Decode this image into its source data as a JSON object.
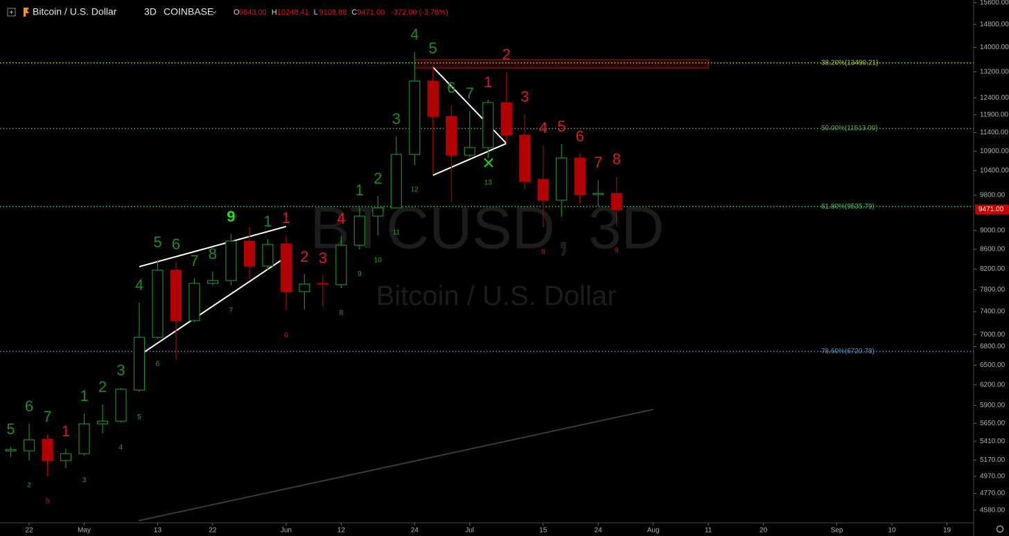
{
  "chart_data": {
    "type": "candlestick",
    "header": {
      "symbol": "Bitcoin / U.S. Dollar",
      "interval": "3D",
      "exchange": "COINBASE",
      "ohlc": [
        {
          "key": "O",
          "value": "9843.00"
        },
        {
          "key": "H",
          "value": "10248.41"
        },
        {
          "key": "L",
          "value": "9108.88"
        },
        {
          "key": "C",
          "value": "9471.00"
        }
      ],
      "change": "-372.00 (-3.78%)"
    },
    "watermark": {
      "symbol": "BTCUSD, 3D",
      "description": "Bitcoin / U.S. Dollar"
    },
    "log_scale": true,
    "xlim": [
      -4.76,
      154.36
    ],
    "ylim": [
      4443,
      15700
    ],
    "xticks": [
      {
        "value": 0,
        "label": "22"
      },
      {
        "value": 9,
        "label": "May"
      },
      {
        "value": 21,
        "label": "13"
      },
      {
        "value": 30,
        "label": "22"
      },
      {
        "value": 42,
        "label": "Jun"
      },
      {
        "value": 51,
        "label": "12"
      },
      {
        "value": 63,
        "label": "24"
      },
      {
        "value": 72,
        "label": "Jul"
      },
      {
        "value": 84,
        "label": "15"
      },
      {
        "value": 93,
        "label": "24"
      },
      {
        "value": 102,
        "label": "Aug"
      },
      {
        "value": 111,
        "label": "11"
      },
      {
        "value": 120,
        "label": "20"
      },
      {
        "value": 132,
        "label": "Sep"
      },
      {
        "value": 141,
        "label": "10"
      },
      {
        "value": 150,
        "label": "19"
      }
    ],
    "yticks": [
      {
        "value": 15600,
        "label": "15600.00"
      },
      {
        "value": 14800,
        "label": "14800.00"
      },
      {
        "value": 14000,
        "label": "14000.00"
      },
      {
        "value": 13200,
        "label": "13200.00"
      },
      {
        "value": 12400,
        "label": "12400.00"
      },
      {
        "value": 11900,
        "label": "11900.00"
      },
      {
        "value": 11400,
        "label": "11400.00"
      },
      {
        "value": 10900,
        "label": "10900.00"
      },
      {
        "value": 10400,
        "label": "10400.00"
      },
      {
        "value": 9800,
        "label": "9800.00"
      },
      {
        "value": 9000,
        "label": "9000.00"
      },
      {
        "value": 8600,
        "label": "8600.00"
      },
      {
        "value": 8200,
        "label": "8200.00"
      },
      {
        "value": 7800,
        "label": "7800.00"
      },
      {
        "value": 7400,
        "label": "7400.00"
      },
      {
        "value": 7000,
        "label": "7000.00"
      },
      {
        "value": 6800,
        "label": "6800.00"
      },
      {
        "value": 6500,
        "label": "6500.00"
      },
      {
        "value": 6200,
        "label": "6200.00"
      },
      {
        "value": 5900,
        "label": "5900.00"
      },
      {
        "value": 5650,
        "label": "5650.00"
      },
      {
        "value": 5410,
        "label": "5410.00"
      },
      {
        "value": 5170,
        "label": "5170.00"
      },
      {
        "value": 4970,
        "label": "4970.00"
      },
      {
        "value": 4770,
        "label": "4770.00"
      },
      {
        "value": 4580,
        "label": "4580.00"
      }
    ],
    "up_color": "#1f8a1f",
    "down_color": "#b40000",
    "last_price": {
      "value": 9471,
      "label": "9471.00",
      "color": "#c40000"
    },
    "fib_levels": [
      {
        "label": "38.20%(13490.21)",
        "value": 13490.21,
        "color": "#a8d63c"
      },
      {
        "label": "50.00%(11513.00)",
        "value": 11513.0,
        "color": "#4cbb4c"
      },
      {
        "label": "61.80%(9535.79)",
        "value": 9535.79,
        "color": "#4cc06a"
      },
      {
        "label": "78.60%(6720.78)",
        "value": 6720.78,
        "color": "#4c9bd8"
      }
    ],
    "zone": {
      "x": [
        63,
        111
      ],
      "y": [
        13326,
        13597
      ],
      "color": "#a01818"
    },
    "trendlines": [
      {
        "x": [
          18,
          42
        ],
        "y": [
          8247,
          9087
        ],
        "color": "#ffffff"
      },
      {
        "x": [
          18,
          42
        ],
        "y": [
          6657,
          8442
        ],
        "color": "#ffffff"
      },
      {
        "x": [
          66,
          78
        ],
        "y": [
          13349,
          11106
        ],
        "color": "#ffffff"
      },
      {
        "x": [
          66,
          78
        ],
        "y": [
          10284,
          11106
        ],
        "color": "#ffffff"
      },
      {
        "x": [
          17.9,
          102
        ],
        "y": [
          4466,
          5843
        ],
        "color": "#3a3a3a"
      }
    ],
    "candles": [
      {
        "x": -3,
        "open": 5286,
        "high": 5340,
        "low": 5206,
        "close": 5303,
        "setup": {
          "text": "5",
          "color": "#1f8a1f"
        }
      },
      {
        "x": 0,
        "open": 5286,
        "high": 5643,
        "low": 5164,
        "close": 5429,
        "setup": {
          "text": "6",
          "color": "#1f8a1f"
        },
        "countdown": {
          "text": "2",
          "color": "#26a626"
        }
      },
      {
        "x": 3,
        "open": 5439,
        "high": 5503,
        "low": 4969,
        "close": 5164,
        "setup": {
          "text": "7",
          "color": "#1f8a1f"
        },
        "countdown": {
          "text": "5",
          "color": "#d01010"
        }
      },
      {
        "x": 6,
        "open": 5164,
        "high": 5313,
        "low": 5070,
        "close": 5250,
        "setup": {
          "text": "1",
          "color": "#e0181c"
        }
      },
      {
        "x": 9,
        "open": 5250,
        "high": 5786,
        "low": 5225,
        "close": 5643,
        "setup": {
          "text": "1",
          "color": "#1f8a1f"
        },
        "countdown": {
          "text": "3",
          "color": "#26a626"
        }
      },
      {
        "x": 12,
        "open": 5643,
        "high": 5913,
        "low": 5512,
        "close": 5680,
        "setup": {
          "text": "2",
          "color": "#1f8a1f"
        }
      },
      {
        "x": 15,
        "open": 5680,
        "high": 6154,
        "low": 5660,
        "close": 6134,
        "setup": {
          "text": "3",
          "color": "#1f8a1f"
        },
        "countdown": {
          "text": "4",
          "color": "#26a626"
        }
      },
      {
        "x": 18,
        "open": 6123,
        "high": 7560,
        "low": 6093,
        "close": 6953,
        "setup": {
          "text": "4",
          "color": "#1f8a1f"
        },
        "countdown": {
          "text": "5",
          "color": "#26a626"
        }
      },
      {
        "x": 21,
        "open": 6953,
        "high": 8385,
        "low": 6919,
        "close": 8178,
        "setup": {
          "text": "5",
          "color": "#1f8a1f"
        },
        "countdown": {
          "text": "6",
          "color": "#26a626"
        }
      },
      {
        "x": 24,
        "open": 8178,
        "high": 8344,
        "low": 6591,
        "close": 7239,
        "setup": {
          "text": "6",
          "color": "#1f8a1f"
        }
      },
      {
        "x": 27,
        "open": 7239,
        "high": 8016,
        "low": 7214,
        "close": 7922,
        "setup": {
          "text": "7",
          "color": "#1f8a1f"
        }
      },
      {
        "x": 30,
        "open": 7922,
        "high": 8151,
        "low": 7882,
        "close": 7975,
        "setup": {
          "text": "8",
          "color": "#1f8a1f"
        }
      },
      {
        "x": 33,
        "open": 7975,
        "high": 8922,
        "low": 7882,
        "close": 8773,
        "setup": {
          "text": "9",
          "color": "#19e619"
        },
        "countdown": {
          "text": "7",
          "color": "#26a626"
        }
      },
      {
        "x": 36,
        "open": 8773,
        "high": 9071,
        "low": 8002,
        "close": 8261
      },
      {
        "x": 39,
        "open": 8261,
        "high": 8817,
        "low": 8178,
        "close": 8701,
        "setup": {
          "text": "1",
          "color": "#1f8a1f"
        }
      },
      {
        "x": 42,
        "open": 8715,
        "high": 8891,
        "low": 7421,
        "close": 7765,
        "setup": {
          "text": "1",
          "color": "#e0181c"
        },
        "countdown": {
          "text": "6",
          "color": "#d01010"
        }
      },
      {
        "x": 45,
        "open": 7765,
        "high": 8096,
        "low": 7434,
        "close": 7909,
        "setup": {
          "text": "2",
          "color": "#e0181c"
        }
      },
      {
        "x": 48,
        "open": 7922,
        "high": 8069,
        "low": 7484,
        "close": 7909,
        "setup": {
          "text": "3",
          "color": "#e0181c"
        }
      },
      {
        "x": 51,
        "open": 7896,
        "high": 8877,
        "low": 7830,
        "close": 8685,
        "setup": {
          "text": "4",
          "color": "#e0181c"
        },
        "countdown": {
          "text": "8",
          "color": "#26a626"
        }
      },
      {
        "x": 54,
        "open": 8685,
        "high": 9506,
        "low": 8599,
        "close": 9318,
        "setup": {
          "text": "1",
          "color": "#1f8a1f"
        },
        "countdown": {
          "text": "9",
          "color": "#26a626"
        }
      },
      {
        "x": 57,
        "open": 9318,
        "high": 9781,
        "low": 8891,
        "close": 9506,
        "setup": {
          "text": "2",
          "color": "#1f8a1f"
        },
        "countdown": {
          "text": "10",
          "color": "#26a626"
        }
      },
      {
        "x": 60,
        "open": 9506,
        "high": 11293,
        "low": 9506,
        "close": 10813,
        "setup": {
          "text": "3",
          "color": "#1f8a1f"
        },
        "countdown": {
          "text": "11",
          "color": "#26a626"
        }
      },
      {
        "x": 63,
        "open": 10813,
        "high": 13849,
        "low": 10546,
        "close": 12910,
        "setup": {
          "text": "4",
          "color": "#1f8a1f"
        },
        "countdown": {
          "text": "12",
          "color": "#26a626"
        }
      },
      {
        "x": 66,
        "open": 12910,
        "high": 13393,
        "low": 10302,
        "close": 11855,
        "setup": {
          "text": "5",
          "color": "#1f8a1f"
        }
      },
      {
        "x": 69,
        "open": 11855,
        "high": 12176,
        "low": 9635,
        "close": 10795,
        "setup": {
          "text": "6",
          "color": "#1f8a1f"
        }
      },
      {
        "x": 72,
        "open": 10795,
        "high": 12013,
        "low": 10741,
        "close": 10995,
        "setup": {
          "text": "7",
          "color": "#1f8a1f"
        }
      },
      {
        "x": 75,
        "open": 10995,
        "high": 12340,
        "low": 10723,
        "close": 12258,
        "setup": {
          "text": "1",
          "color": "#e0181c"
        },
        "countdown": {
          "text": "13",
          "color": "#26a626"
        }
      },
      {
        "x": 78,
        "open": 12258,
        "high": 13194,
        "low": 11050,
        "close": 11331,
        "setup": {
          "text": "2",
          "color": "#e0181c"
        }
      },
      {
        "x": 81,
        "open": 11331,
        "high": 11915,
        "low": 9929,
        "close": 10131,
        "setup": {
          "text": "3",
          "color": "#e0181c"
        }
      },
      {
        "x": 84,
        "open": 10182,
        "high": 11050,
        "low": 9071,
        "close": 9683,
        "setup": {
          "text": "4",
          "color": "#e0181c"
        },
        "countdown": {
          "text": "8",
          "color": "#d01010"
        }
      },
      {
        "x": 87,
        "open": 9683,
        "high": 11087,
        "low": 9302,
        "close": 10723,
        "setup": {
          "text": "5",
          "color": "#e0181c"
        }
      },
      {
        "x": 90,
        "open": 10723,
        "high": 10831,
        "low": 9618,
        "close": 9814,
        "setup": {
          "text": "6",
          "color": "#e0181c"
        }
      },
      {
        "x": 93,
        "open": 9814,
        "high": 10164,
        "low": 9539,
        "close": 9843,
        "setup": {
          "text": "7",
          "color": "#e0181c"
        }
      },
      {
        "x": 96,
        "open": 9843,
        "high": 10248.41,
        "low": 9108.88,
        "close": 9471,
        "setup": {
          "text": "8",
          "color": "#e0181c"
        },
        "countdown": {
          "text": "9",
          "color": "#d01010"
        }
      }
    ]
  }
}
